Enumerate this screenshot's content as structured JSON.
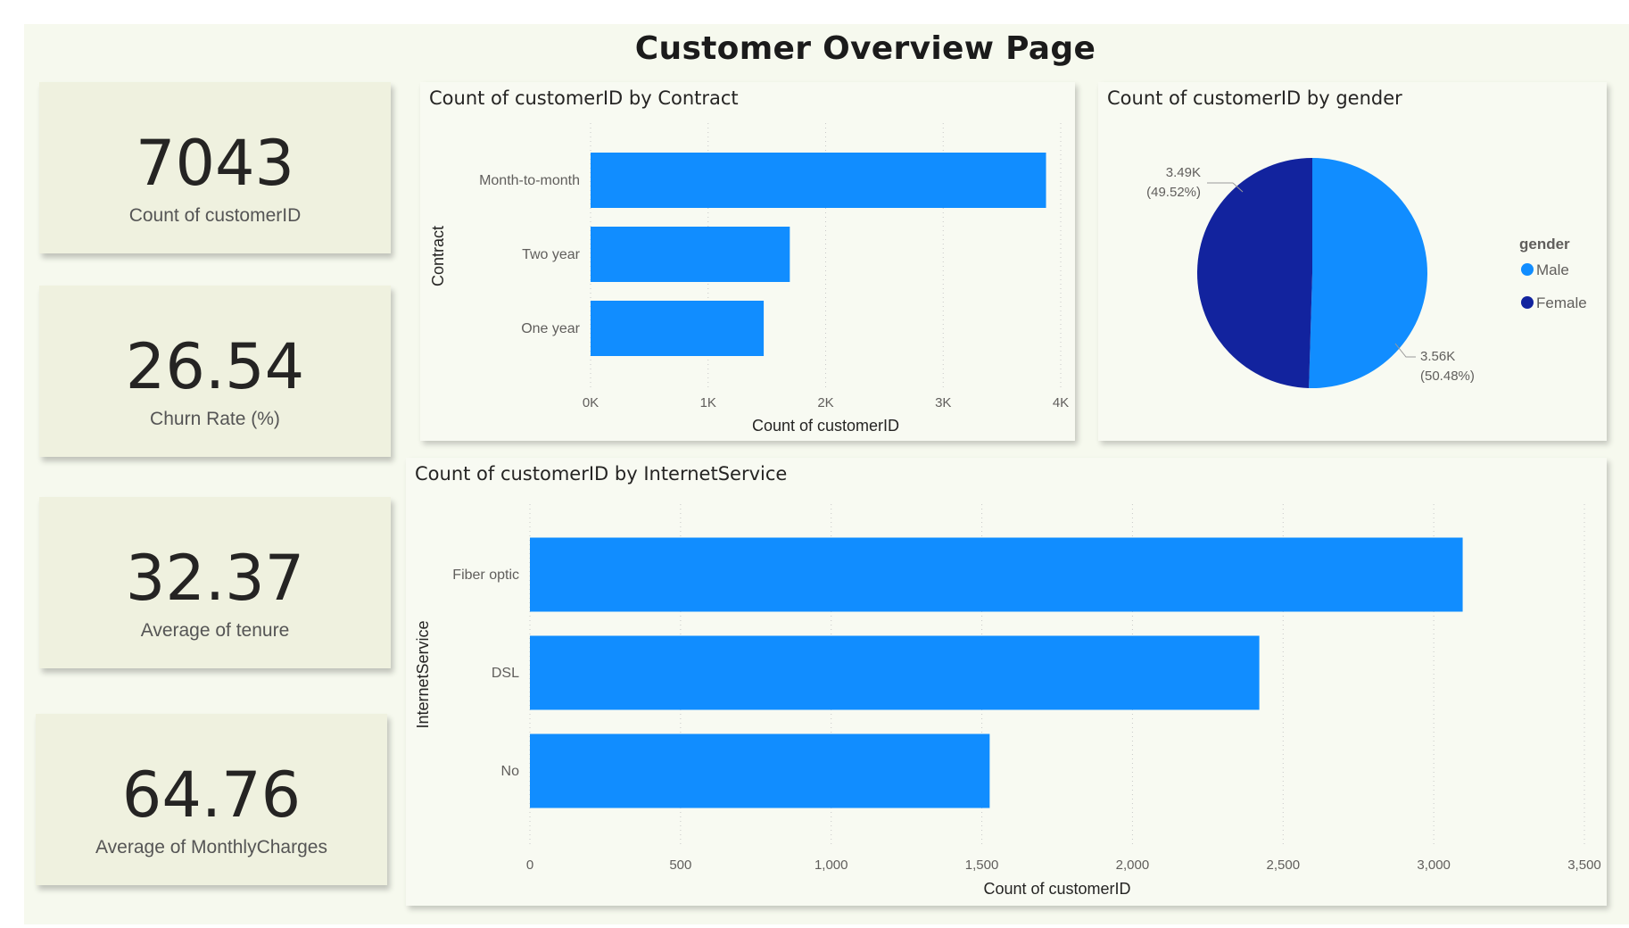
{
  "page": {
    "title": "Customer Overview Page"
  },
  "kpis": [
    {
      "value": "7043",
      "label": "Count of customerID"
    },
    {
      "value": "26.54",
      "label": "Churn Rate (%)"
    },
    {
      "value": "32.37",
      "label": "Average of tenure"
    },
    {
      "value": "64.76",
      "label": "Average of MonthlyCharges"
    }
  ],
  "colors": {
    "bar": "#118dff",
    "male": "#118dff",
    "female": "#12239e"
  },
  "chart_data": [
    {
      "type": "bar",
      "orientation": "horizontal",
      "title": "Count of customerID by Contract",
      "categories": [
        "Month-to-month",
        "Two year",
        "One year"
      ],
      "values": [
        3875,
        1695,
        1473
      ],
      "xlabel": "Count of customerID",
      "ylabel": "Contract",
      "xlim": [
        0,
        4000
      ],
      "xticks": [
        0,
        1000,
        2000,
        3000,
        4000
      ],
      "xtick_labels": [
        "0K",
        "1K",
        "2K",
        "3K",
        "4K"
      ],
      "grid": true
    },
    {
      "type": "pie",
      "title": "Count of customerID by gender",
      "legend_title": "gender",
      "legend_position": "right",
      "categories": [
        "Male",
        "Female"
      ],
      "values": [
        3555,
        3488
      ],
      "value_labels": [
        "3.56K",
        "3.49K"
      ],
      "percent_labels": [
        "(50.48%)",
        "(49.52%)"
      ]
    },
    {
      "type": "bar",
      "orientation": "horizontal",
      "title": "Count of customerID by InternetService",
      "categories": [
        "Fiber optic",
        "DSL",
        "No"
      ],
      "values": [
        3096,
        2421,
        1526
      ],
      "xlabel": "Count of customerID",
      "ylabel": "InternetService",
      "xlim": [
        0,
        3500
      ],
      "xticks": [
        0,
        500,
        1000,
        1500,
        2000,
        2500,
        3000,
        3500
      ],
      "xtick_labels": [
        "0",
        "500",
        "1,000",
        "1,500",
        "2,000",
        "2,500",
        "3,000",
        "3,500"
      ],
      "grid": true
    }
  ]
}
